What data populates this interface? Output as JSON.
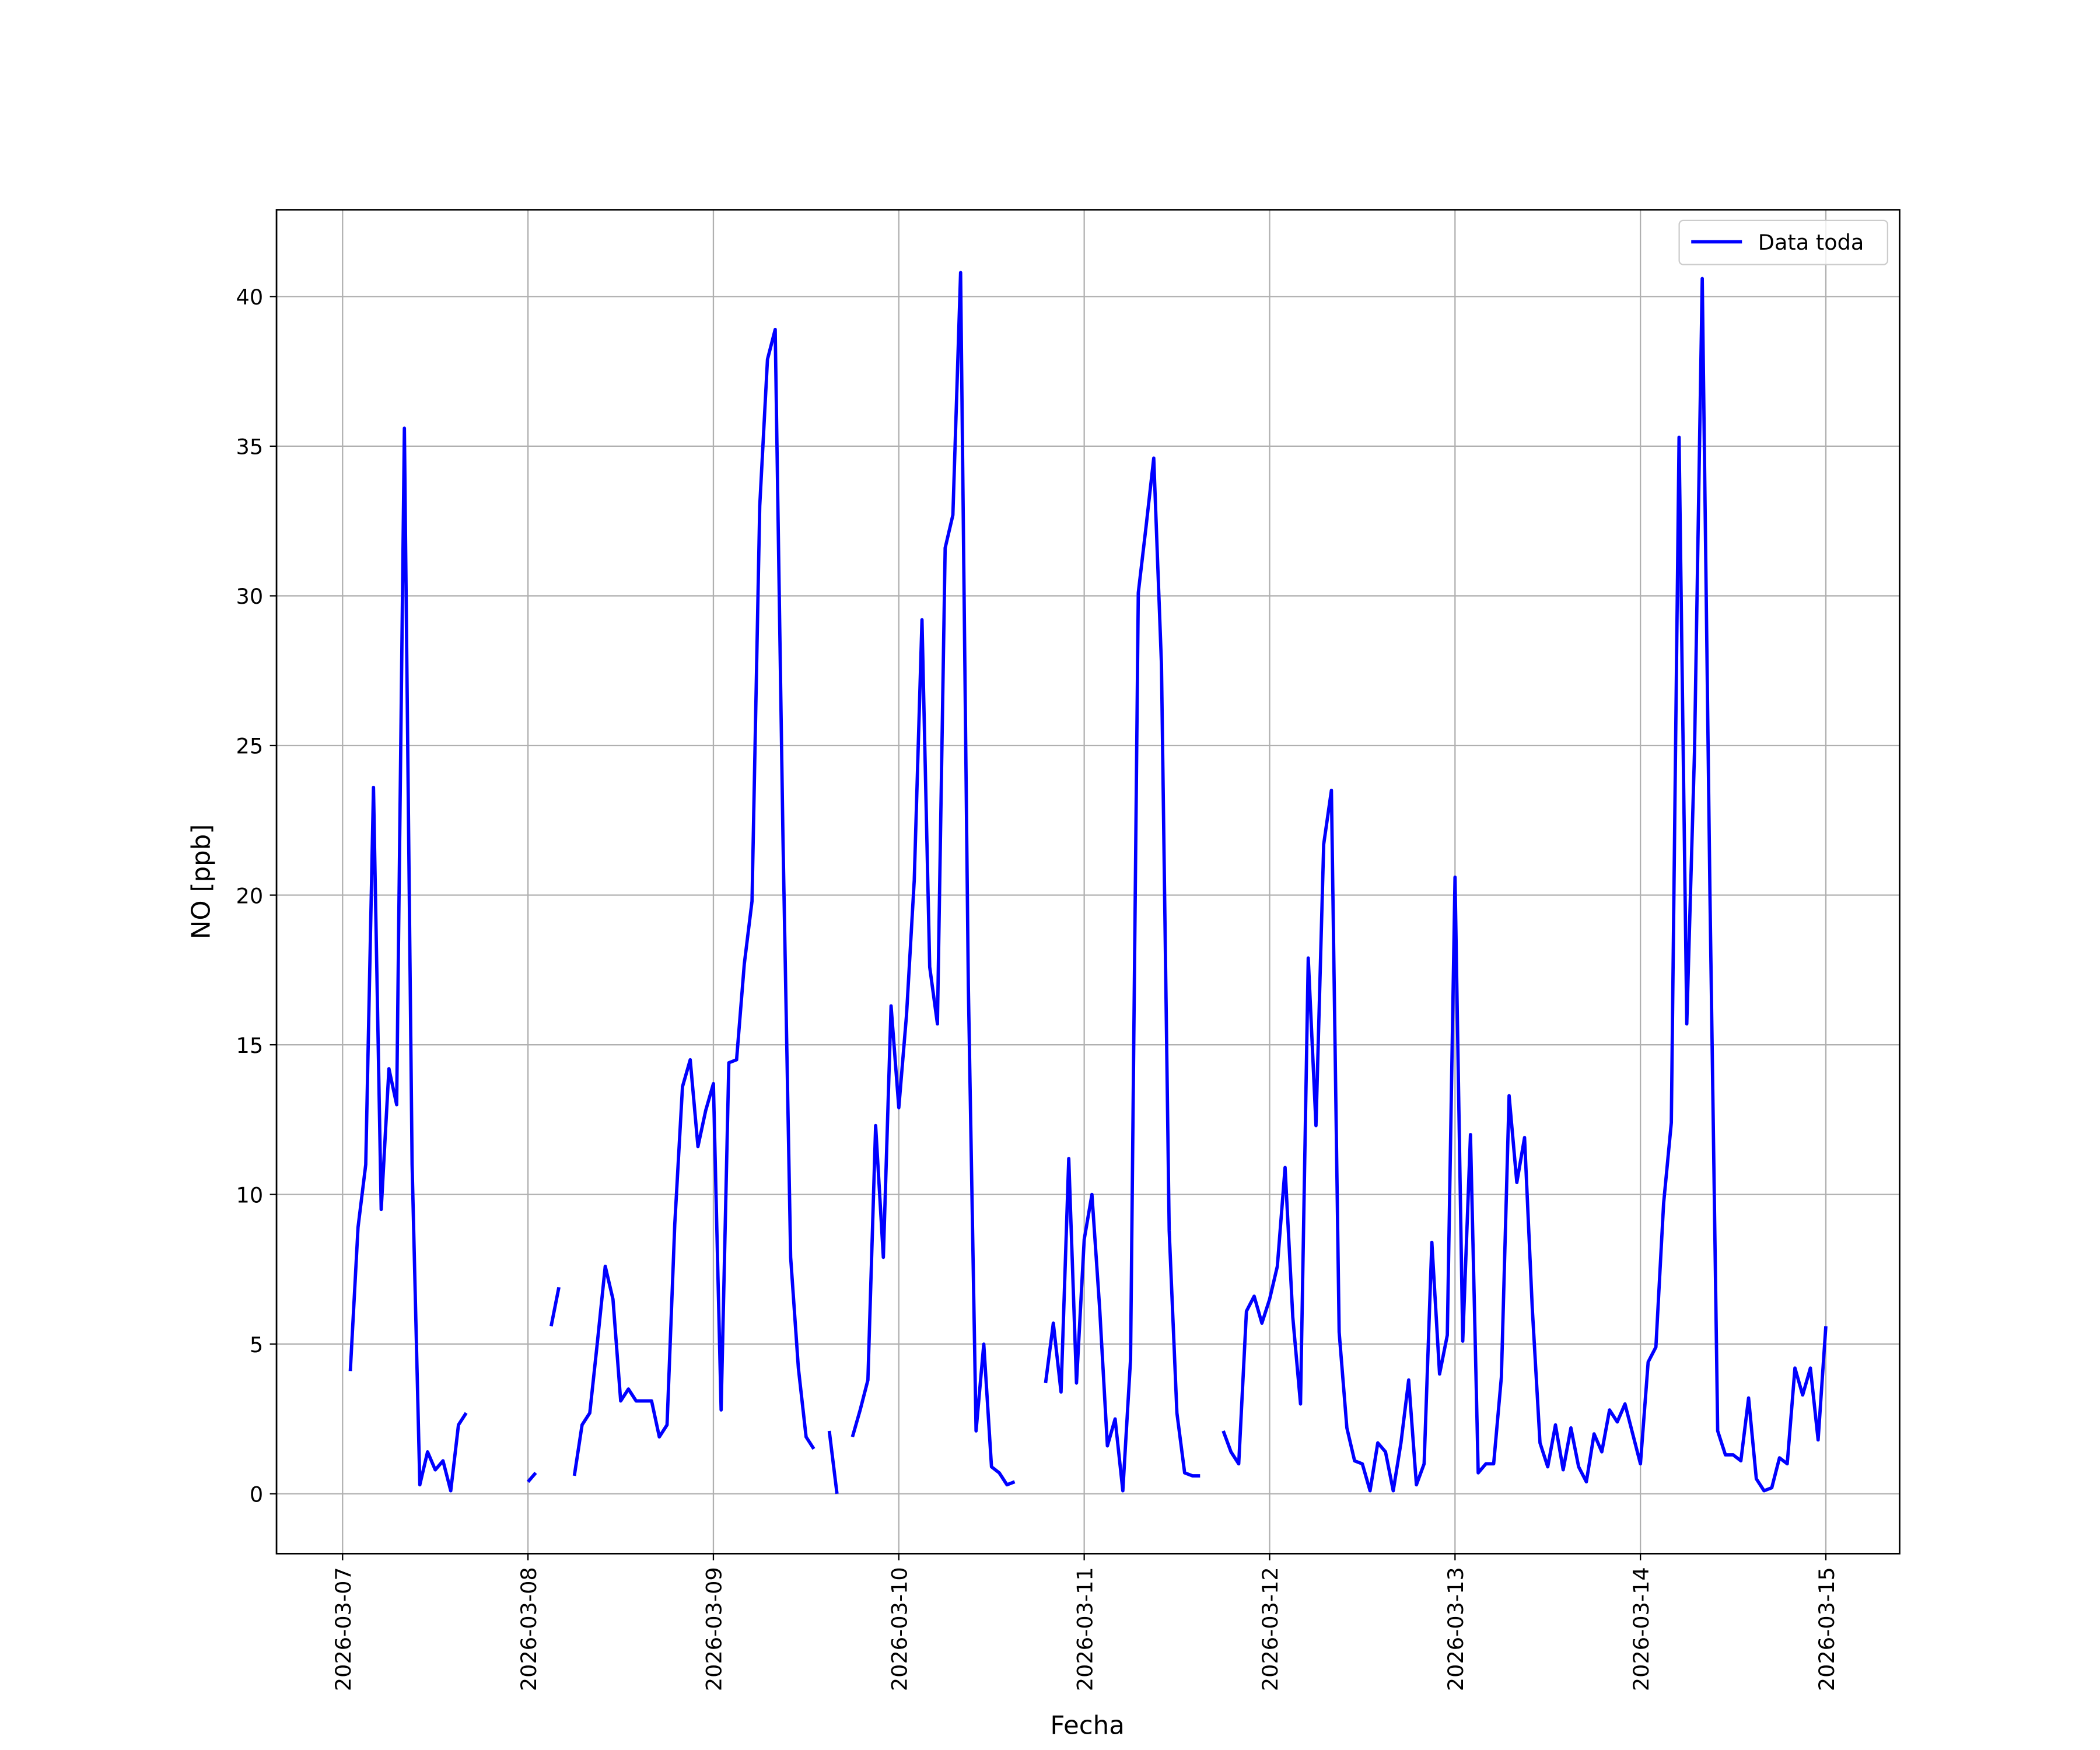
{
  "chart_data": {
    "type": "line",
    "xlabel": "Fecha",
    "ylabel": "NO [ppb]",
    "x": [
      "2026-03-07 01:00",
      "2026-03-07 02:00",
      "2026-03-07 03:00",
      "2026-03-07 04:00",
      "2026-03-07 05:00",
      "2026-03-07 06:00",
      "2026-03-07 07:00",
      "2026-03-07 08:00",
      "2026-03-07 09:00",
      "2026-03-07 10:00",
      "2026-03-07 11:00",
      "2026-03-07 12:00",
      "2026-03-07 13:00",
      "2026-03-07 14:00",
      "2026-03-07 15:00",
      "2026-03-07 16:00",
      "2026-03-07 17:00",
      "2026-03-08 00:00",
      "2026-03-08 01:00",
      "2026-03-08 02:00",
      "2026-03-08 03:00",
      "2026-03-08 04:00",
      "2026-03-08 05:00",
      "2026-03-08 06:00",
      "2026-03-08 07:00",
      "2026-03-08 08:00",
      "2026-03-08 09:00",
      "2026-03-08 10:00",
      "2026-03-08 11:00",
      "2026-03-08 12:00",
      "2026-03-08 13:00",
      "2026-03-08 14:00",
      "2026-03-08 15:00",
      "2026-03-08 16:00",
      "2026-03-08 17:00",
      "2026-03-08 18:00",
      "2026-03-08 19:00",
      "2026-03-08 20:00",
      "2026-03-08 21:00",
      "2026-03-08 22:00",
      "2026-03-08 23:00",
      "2026-03-09 00:00",
      "2026-03-09 01:00",
      "2026-03-09 02:00",
      "2026-03-09 03:00",
      "2026-03-09 04:00",
      "2026-03-09 05:00",
      "2026-03-09 06:00",
      "2026-03-09 07:00",
      "2026-03-09 08:00",
      "2026-03-09 09:00",
      "2026-03-09 10:00",
      "2026-03-09 11:00",
      "2026-03-09 12:00",
      "2026-03-09 13:00",
      "2026-03-09 14:00",
      "2026-03-09 15:00",
      "2026-03-09 16:00",
      "2026-03-09 17:00",
      "2026-03-09 18:00",
      "2026-03-09 19:00",
      "2026-03-09 20:00",
      "2026-03-09 21:00",
      "2026-03-09 22:00",
      "2026-03-09 23:00",
      "2026-03-10 00:00",
      "2026-03-10 01:00",
      "2026-03-10 02:00",
      "2026-03-10 03:00",
      "2026-03-10 04:00",
      "2026-03-10 05:00",
      "2026-03-10 06:00",
      "2026-03-10 07:00",
      "2026-03-10 08:00",
      "2026-03-10 09:00",
      "2026-03-10 10:00",
      "2026-03-10 11:00",
      "2026-03-10 12:00",
      "2026-03-10 13:00",
      "2026-03-10 14:00",
      "2026-03-10 15:00",
      "2026-03-10 16:00",
      "2026-03-10 19:00",
      "2026-03-10 20:00",
      "2026-03-10 21:00",
      "2026-03-10 22:00",
      "2026-03-10 23:00",
      "2026-03-11 00:00",
      "2026-03-11 01:00",
      "2026-03-11 02:00",
      "2026-03-11 03:00",
      "2026-03-11 04:00",
      "2026-03-11 05:00",
      "2026-03-11 06:00",
      "2026-03-11 07:00",
      "2026-03-11 08:00",
      "2026-03-11 09:00",
      "2026-03-11 10:00",
      "2026-03-11 11:00",
      "2026-03-11 12:00",
      "2026-03-11 13:00",
      "2026-03-11 14:00",
      "2026-03-11 15:00",
      "2026-03-11 16:00",
      "2026-03-11 18:00",
      "2026-03-11 19:00",
      "2026-03-11 20:00",
      "2026-03-11 21:00",
      "2026-03-11 22:00",
      "2026-03-11 23:00",
      "2026-03-12 00:00",
      "2026-03-12 01:00",
      "2026-03-12 02:00",
      "2026-03-12 03:00",
      "2026-03-12 04:00",
      "2026-03-12 05:00",
      "2026-03-12 06:00",
      "2026-03-12 07:00",
      "2026-03-12 08:00",
      "2026-03-12 09:00",
      "2026-03-12 10:00",
      "2026-03-12 11:00",
      "2026-03-12 12:00",
      "2026-03-12 13:00",
      "2026-03-12 14:00",
      "2026-03-12 15:00",
      "2026-03-12 16:00",
      "2026-03-12 17:00",
      "2026-03-12 18:00",
      "2026-03-12 19:00",
      "2026-03-12 20:00",
      "2026-03-12 21:00",
      "2026-03-12 22:00",
      "2026-03-12 23:00",
      "2026-03-13 00:00",
      "2026-03-13 01:00",
      "2026-03-13 02:00",
      "2026-03-13 03:00",
      "2026-03-13 04:00",
      "2026-03-13 05:00",
      "2026-03-13 06:00",
      "2026-03-13 07:00",
      "2026-03-13 08:00",
      "2026-03-13 09:00",
      "2026-03-13 10:00",
      "2026-03-13 11:00",
      "2026-03-13 12:00",
      "2026-03-13 13:00",
      "2026-03-13 14:00",
      "2026-03-13 15:00",
      "2026-03-13 16:00",
      "2026-03-13 17:00",
      "2026-03-13 18:00",
      "2026-03-13 19:00",
      "2026-03-13 20:00",
      "2026-03-13 21:00",
      "2026-03-13 22:00",
      "2026-03-13 23:00",
      "2026-03-14 00:00",
      "2026-03-14 01:00",
      "2026-03-14 02:00",
      "2026-03-14 03:00",
      "2026-03-14 04:00",
      "2026-03-14 05:00",
      "2026-03-14 06:00",
      "2026-03-14 07:00",
      "2026-03-14 08:00",
      "2026-03-14 09:00",
      "2026-03-14 10:00",
      "2026-03-14 11:00",
      "2026-03-14 12:00",
      "2026-03-14 13:00",
      "2026-03-14 14:00",
      "2026-03-14 15:00",
      "2026-03-14 16:00",
      "2026-03-14 17:00",
      "2026-03-14 18:00",
      "2026-03-14 19:00",
      "2026-03-14 20:00",
      "2026-03-14 21:00",
      "2026-03-14 22:00",
      "2026-03-14 23:00",
      "2026-03-15 00:00"
    ],
    "series": [
      {
        "name": "Data toda",
        "color": "#0000ff",
        "values": [
          4.1,
          8.9,
          11,
          23.6,
          9.5,
          14.2,
          13,
          35.6,
          11,
          0.3,
          1.4,
          0.8,
          1.1,
          0.1,
          2.3,
          2.7,
          null,
          0.4,
          0.7,
          null,
          5.6,
          6.9,
          null,
          0.6,
          2.3,
          2.7,
          5.1,
          7.6,
          6.5,
          3.1,
          3.5,
          3.1,
          3.1,
          3.1,
          1.9,
          2.3,
          9,
          13.6,
          14.5,
          11.6,
          12.8,
          13.7,
          2.8,
          14.4,
          14.5,
          17.7,
          19.8,
          33,
          37.9,
          38.9,
          22,
          7.9,
          4.2,
          1.9,
          1.5,
          null,
          2.1,
          0,
          null,
          1.9,
          2.8,
          3.8,
          12.3,
          7.9,
          16.3,
          12.9,
          16,
          20.5,
          29.2,
          17.6,
          15.7,
          31.6,
          32.7,
          40.8,
          17,
          2.1,
          5,
          0.9,
          0.7,
          0.3,
          0.4,
          null,
          3.7,
          5.7,
          3.4,
          11.2,
          3.7,
          8.5,
          10,
          6.2,
          1.6,
          2.5,
          0.1,
          4.5,
          30.1,
          32.3,
          34.6,
          27.7,
          8.8,
          2.7,
          0.7,
          0.6,
          0.6,
          null,
          2.1,
          1.4,
          1,
          6.1,
          6.6,
          5.7,
          6.5,
          7.6,
          10.9,
          5.9,
          3,
          17.9,
          12.3,
          21.7,
          23.5,
          5.4,
          2.2,
          1.1,
          1,
          0.1,
          1.7,
          1.4,
          0.1,
          1.7,
          3.8,
          0.3,
          1,
          8.4,
          4,
          5.3,
          20.6,
          5.1,
          12,
          0.7,
          1,
          1,
          3.9,
          13.3,
          10.4,
          11.9,
          6.2,
          1.7,
          0.9,
          2.3,
          0.8,
          2.2,
          0.9,
          0.4,
          2,
          1.4,
          2.8,
          2.4,
          3,
          2,
          1,
          4.4,
          4.9,
          9.7,
          12.4,
          35.3,
          15.7,
          24.8,
          40.6,
          20,
          2.1,
          1.3,
          1.3,
          1.1,
          3.2,
          0.5,
          0.1,
          0.2,
          1.2,
          1,
          4.2,
          3.3,
          4.2,
          1.8,
          5.6
        ]
      }
    ],
    "xlim": [
      "2026-03-06 15:27",
      "2026-03-15 09:33"
    ],
    "xticks": [
      "2026-03-07",
      "2026-03-08",
      "2026-03-09",
      "2026-03-10",
      "2026-03-11",
      "2026-03-12",
      "2026-03-13",
      "2026-03-14",
      "2026-03-15"
    ],
    "ylim": [
      -2.0,
      42.9
    ],
    "yticks": [
      0,
      5,
      10,
      15,
      20,
      25,
      30,
      35,
      40
    ],
    "grid": true,
    "legend": "upper right"
  }
}
